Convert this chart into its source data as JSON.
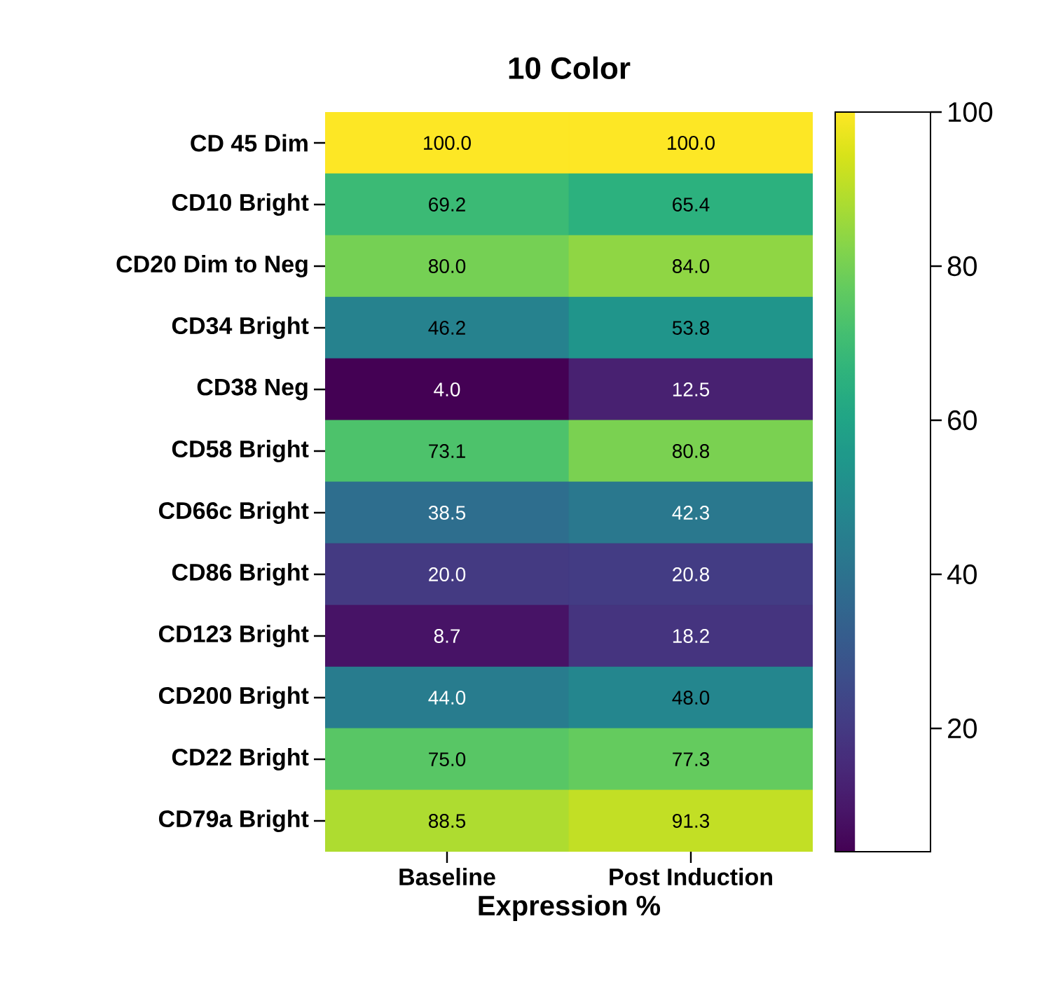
{
  "chart_data": {
    "type": "heatmap",
    "title": "10 Color",
    "xlabel": "Expression %",
    "categories": [
      "Baseline",
      "Post Induction"
    ],
    "y_categories": [
      "CD 45 Dim",
      "CD10 Bright",
      "CD20 Dim to Neg",
      "CD34 Bright",
      "CD38 Neg",
      "CD58 Bright",
      "CD66c Bright",
      "CD86 Bright",
      "CD123 Bright",
      "CD200 Bright",
      "CD22 Bright",
      "CD79a Bright"
    ],
    "cells": [
      [
        100.0,
        100.0
      ],
      [
        69.2,
        65.4
      ],
      [
        80.0,
        84.0
      ],
      [
        46.2,
        53.8
      ],
      [
        4.0,
        12.5
      ],
      [
        73.1,
        80.8
      ],
      [
        38.5,
        42.3
      ],
      [
        20.0,
        20.8
      ],
      [
        8.7,
        18.2
      ],
      [
        44.0,
        48.0
      ],
      [
        75.0,
        77.3
      ],
      [
        88.5,
        91.3
      ]
    ],
    "cell_labels": [
      [
        "100.0",
        "100.0"
      ],
      [
        "69.2",
        "65.4"
      ],
      [
        "80.0",
        "84.0"
      ],
      [
        "46.2",
        "53.8"
      ],
      [
        "4.0",
        "12.5"
      ],
      [
        "73.1",
        "80.8"
      ],
      [
        "38.5",
        "42.3"
      ],
      [
        "20.0",
        "20.8"
      ],
      [
        "8.7",
        "18.2"
      ],
      [
        "44.0",
        "48.0"
      ],
      [
        "75.0",
        "77.3"
      ],
      [
        "88.5",
        "91.3"
      ]
    ],
    "clim": [
      4,
      100
    ],
    "cticks": [
      20,
      40,
      60,
      80,
      100
    ]
  }
}
